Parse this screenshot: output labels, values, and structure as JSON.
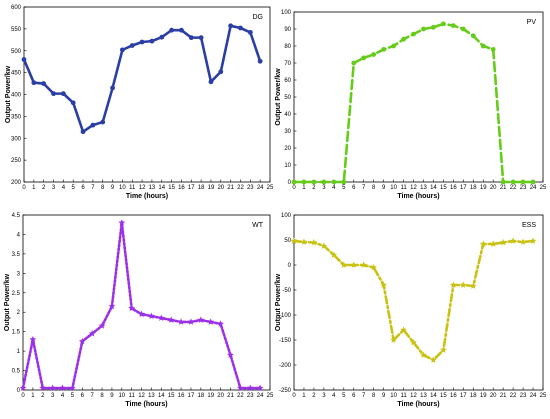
{
  "chart_data": [
    {
      "type": "line",
      "legend": "DG",
      "color": "#2b3ea6",
      "linestyle": "solid",
      "marker": "circle",
      "xlabel": "Time (hours)",
      "ylabel": "Output Power/kw",
      "xlim": [
        0,
        25
      ],
      "ylim": [
        200,
        600
      ],
      "xticks": [
        0,
        1,
        2,
        3,
        4,
        5,
        6,
        7,
        8,
        9,
        10,
        11,
        12,
        13,
        14,
        15,
        16,
        17,
        18,
        19,
        20,
        21,
        22,
        23,
        24,
        25
      ],
      "yticks": [
        200,
        250,
        300,
        350,
        400,
        450,
        500,
        550,
        600
      ],
      "x": [
        0,
        1,
        2,
        3,
        4,
        5,
        6,
        7,
        8,
        9,
        10,
        11,
        12,
        13,
        14,
        15,
        16,
        17,
        18,
        19,
        20,
        21,
        22,
        23,
        24
      ],
      "y": [
        480,
        427,
        425,
        402,
        402,
        381,
        315,
        330,
        337,
        415,
        502,
        512,
        520,
        522,
        531,
        547,
        547,
        530,
        530,
        429,
        452,
        557,
        552,
        542,
        476
      ]
    },
    {
      "type": "line",
      "legend": "PV",
      "color": "#66cc1a",
      "linestyle": "dashed",
      "marker": "circle",
      "xlabel": "Time (hours)",
      "ylabel": "Output Power/kw",
      "xlim": [
        0,
        25
      ],
      "ylim": [
        0,
        100
      ],
      "xticks": [
        0,
        1,
        2,
        3,
        4,
        5,
        6,
        7,
        8,
        9,
        10,
        11,
        12,
        13,
        14,
        15,
        16,
        17,
        18,
        19,
        20,
        21,
        22,
        23,
        24,
        25
      ],
      "yticks": [
        0,
        10,
        20,
        30,
        40,
        50,
        60,
        70,
        80,
        90,
        100
      ],
      "x": [
        0,
        1,
        2,
        3,
        4,
        5,
        6,
        7,
        8,
        9,
        10,
        11,
        12,
        13,
        14,
        15,
        16,
        17,
        18,
        19,
        20,
        21,
        22,
        23,
        24
      ],
      "y": [
        0,
        0,
        0,
        0,
        0,
        0,
        70,
        73,
        75,
        78,
        80,
        84,
        87,
        90,
        91,
        93,
        92,
        90,
        86,
        80,
        78,
        0,
        0,
        0,
        0
      ]
    },
    {
      "type": "line",
      "legend": "WT",
      "color": "#9b30e8",
      "linestyle": "dotted",
      "marker": "star",
      "xlabel": "Time (hours)",
      "ylabel": "Output Power/kw",
      "xlim": [
        0,
        25
      ],
      "ylim": [
        0,
        4.5
      ],
      "xticks": [
        0,
        1,
        2,
        3,
        4,
        5,
        6,
        7,
        8,
        9,
        10,
        11,
        12,
        13,
        14,
        15,
        16,
        17,
        18,
        19,
        20,
        21,
        22,
        23,
        24,
        25
      ],
      "yticks": [
        0,
        0.5,
        1,
        1.5,
        2,
        2.5,
        3,
        3.5,
        4,
        4.5
      ],
      "x": [
        0,
        1,
        2,
        3,
        4,
        5,
        6,
        7,
        8,
        9,
        10,
        11,
        12,
        13,
        14,
        15,
        16,
        17,
        18,
        19,
        20,
        21,
        22,
        23,
        24
      ],
      "y": [
        0.05,
        1.3,
        0.05,
        0.05,
        0.05,
        0.05,
        1.25,
        1.45,
        1.65,
        2.15,
        4.3,
        2.1,
        1.95,
        1.9,
        1.85,
        1.8,
        1.75,
        1.75,
        1.8,
        1.75,
        1.7,
        0.9,
        0.05,
        0.05,
        0.05
      ]
    },
    {
      "type": "line",
      "legend": "ESS",
      "color": "#c9c213",
      "linestyle": "dashdot",
      "marker": "star",
      "xlabel": "Time (hours)",
      "ylabel": "Output Power/kw",
      "xlim": [
        0,
        25
      ],
      "ylim": [
        -250,
        100
      ],
      "xticks": [
        0,
        1,
        2,
        3,
        4,
        5,
        6,
        7,
        8,
        9,
        10,
        11,
        12,
        13,
        14,
        15,
        16,
        17,
        18,
        19,
        20,
        21,
        22,
        23,
        24,
        25
      ],
      "yticks": [
        -250,
        -200,
        -150,
        -100,
        -50,
        0,
        50,
        100
      ],
      "x": [
        0,
        1,
        2,
        3,
        4,
        5,
        6,
        7,
        8,
        9,
        10,
        11,
        12,
        13,
        14,
        15,
        16,
        17,
        18,
        19,
        20,
        21,
        22,
        23,
        24
      ],
      "y": [
        48,
        46,
        45,
        38,
        20,
        0,
        0,
        0,
        -5,
        -40,
        -150,
        -130,
        -155,
        -180,
        -190,
        -170,
        -40,
        -40,
        -42,
        42,
        42,
        45,
        48,
        46,
        48
      ]
    }
  ]
}
